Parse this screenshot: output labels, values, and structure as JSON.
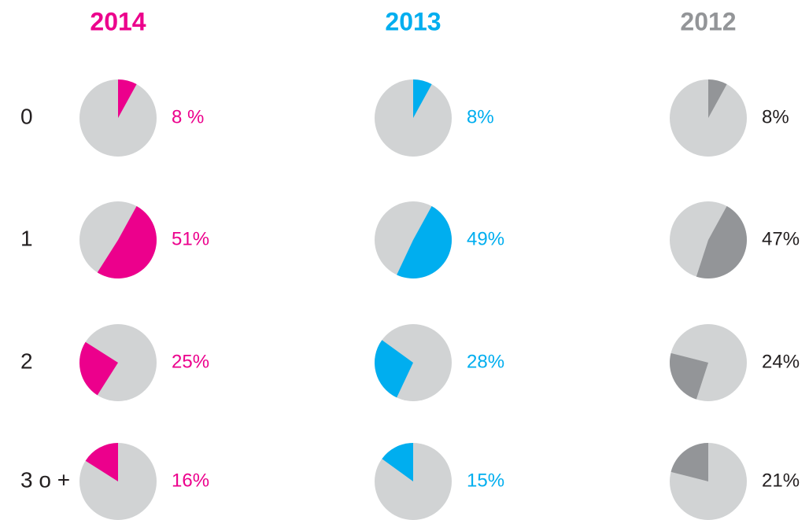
{
  "chart_data": {
    "type": "pie",
    "categories": [
      "0",
      "1",
      "2",
      "3 o +"
    ],
    "background_color": "#d1d3d4",
    "series": [
      {
        "name": "2014",
        "color": "#ec008c",
        "text_color": "#ec008c",
        "values": [
          8,
          51,
          25,
          16
        ],
        "value_labels": [
          "8 %",
          "51%",
          "25%",
          "16%"
        ]
      },
      {
        "name": "2013",
        "color": "#00aeef",
        "text_color": "#00aeef",
        "values": [
          8,
          49,
          28,
          15
        ],
        "value_labels": [
          "8%",
          "49%",
          "28%",
          "15%"
        ]
      },
      {
        "name": "2012",
        "color": "#939598",
        "text_color": "#231f20",
        "values": [
          8,
          47,
          24,
          21
        ],
        "value_labels": [
          "8%",
          "47%",
          "24%",
          "21%"
        ]
      }
    ]
  }
}
